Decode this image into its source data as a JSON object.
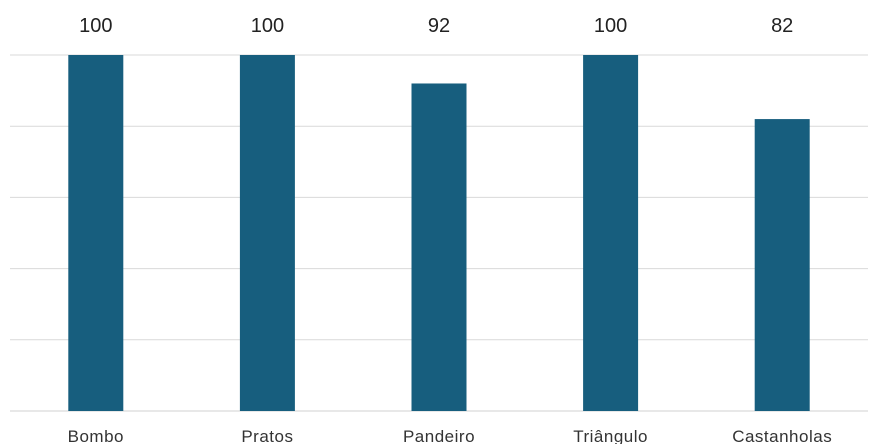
{
  "chart_data": {
    "type": "bar",
    "title": "",
    "xlabel": "",
    "ylabel": "",
    "categories": [
      "Bombo",
      "Pratos",
      "Pandeiro",
      "Triângulo",
      "Castanholas"
    ],
    "values": [
      100,
      100,
      92,
      100,
      82
    ],
    "data_labels": [
      "100",
      "100",
      "92",
      "100",
      "82"
    ],
    "ylim": [
      0,
      100
    ],
    "y_gridlines": [
      0,
      20,
      40,
      60,
      80,
      100
    ],
    "grid": true,
    "legend": "none",
    "bar_color": "#175e7e",
    "grid_color": "#d9d9d9"
  }
}
